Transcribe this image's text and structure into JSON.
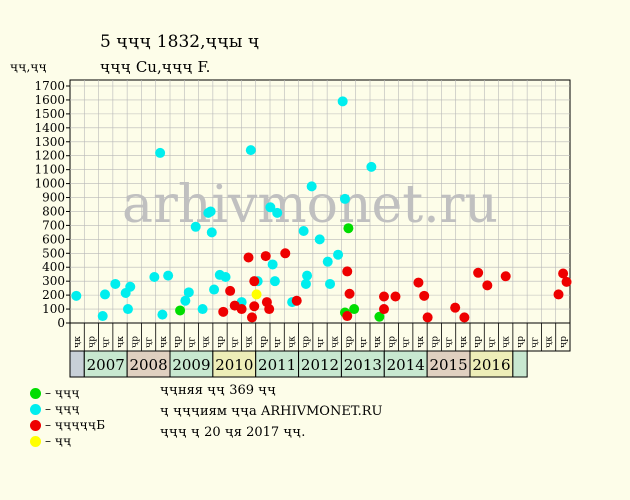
{
  "title": "5 ҷҷҷ 1832,ҷҷы ҷ",
  "subtitle": "ҷҷҷ Cu,ҷҷҷ F.",
  "ylabel": "ҷҷ,ҷҷ",
  "watermark": "arhivmonet.ru",
  "notes": [
    "ҷҷняя ҷҷ 369 ҷҷ",
    "ҷ ҷҷҷиям ҷҷа ARHIVMONET.RU",
    "ҷҷҷ ҷ 20 ҷя 2017 ҷҷ."
  ],
  "legend": [
    {
      "label": "– ҷҷҷ",
      "color": "#00dd00"
    },
    {
      "label": "– ҷҷҷ",
      "color": "#00eeee"
    },
    {
      "label": "– ҷҷҷҷҷБ",
      "color": "#ee0000"
    },
    {
      "label": "– ҷҷ",
      "color": "#ffff00"
    }
  ],
  "chart_data": {
    "type": "scatter",
    "ylim": [
      0,
      1700
    ],
    "yticks": [
      0,
      100,
      200,
      300,
      400,
      500,
      600,
      700,
      800,
      900,
      1000,
      1100,
      1200,
      1300,
      1400,
      1500,
      1600,
      1700
    ],
    "grid": true,
    "quarter_labels": [
      "ҷк",
      "ҷр",
      "ҷг",
      "ҷк",
      "ҷр",
      "ҷг",
      "ҷк",
      "ҷр",
      "ҷг",
      "ҷк",
      "ҷр",
      "ҷг",
      "ҷк",
      "ҷр",
      "ҷг",
      "ҷк",
      "ҷр",
      "ҷг",
      "ҷк",
      "ҷр",
      "ҷг",
      "ҷк",
      "ҷр",
      "ҷг",
      "ҷк",
      "ҷр",
      "ҷг",
      "ҷк",
      "ҷр",
      "ҷг",
      "ҷк",
      "ҷр",
      "ҷг",
      "ҷк",
      "ҷр",
      "ҷг",
      "ҷк",
      "ҷр",
      "ҷг",
      "ҷк",
      "ҷр",
      "ҷг",
      "ҷк",
      "ҷр",
      "ҷг",
      "ҷк",
      "ҷр",
      "ҷг",
      "ҷк",
      "ҷр",
      "ҷг",
      "ҷк",
      "ҷр",
      "ҷг",
      "ҷк",
      "ҷр",
      "ҷг",
      "ҷк",
      "ҷр",
      "ҷг",
      "ҷк",
      "ҷр",
      "ҷг"
    ],
    "years": [
      {
        "label": "",
        "color": "#c8d0d8",
        "quarters": 1
      },
      {
        "label": "2007",
        "color": "#c8e8d0",
        "quarters": 3
      },
      {
        "label": "2008",
        "color": "#e0d0c0",
        "quarters": 3
      },
      {
        "label": "2009",
        "color": "#c8e8d0",
        "quarters": 3
      },
      {
        "label": "2010",
        "color": "#eeeeb8",
        "quarters": 3
      },
      {
        "label": "2011",
        "color": "#c8e8d0",
        "quarters": 3
      },
      {
        "label": "2012",
        "color": "#c8e8d0",
        "quarters": 3
      },
      {
        "label": "2013",
        "color": "#c8e8d0",
        "quarters": 3
      },
      {
        "label": "2014",
        "color": "#c8e8d0",
        "quarters": 3
      },
      {
        "label": "2015",
        "color": "#e0d0c0",
        "quarters": 3
      },
      {
        "label": "2016",
        "color": "#eeeeb8",
        "quarters": 3
      },
      {
        "label": "",
        "color": "#c8e8d0",
        "quarters": 1
      }
    ],
    "series": [
      {
        "color": "#00dd00",
        "points": [
          [
            4.62,
            90
          ],
          [
            11.8,
            75
          ],
          [
            11.95,
            680
          ],
          [
            12.2,
            100
          ],
          [
            13.3,
            45
          ]
        ]
      },
      {
        "color": "#00eeee",
        "points": [
          [
            0.1,
            195
          ],
          [
            1.25,
            50
          ],
          [
            1.35,
            205
          ],
          [
            1.8,
            280
          ],
          [
            2.25,
            215
          ],
          [
            2.35,
            100
          ],
          [
            2.45,
            260
          ],
          [
            3.5,
            330
          ],
          [
            3.75,
            1220
          ],
          [
            3.85,
            60
          ],
          [
            4.1,
            340
          ],
          [
            4.85,
            160
          ],
          [
            5.0,
            220
          ],
          [
            5.3,
            690
          ],
          [
            5.6,
            100
          ],
          [
            5.85,
            790
          ],
          [
            5.95,
            800
          ],
          [
            6.0,
            650
          ],
          [
            6.1,
            240
          ],
          [
            6.35,
            345
          ],
          [
            6.6,
            330
          ],
          [
            7.3,
            150
          ],
          [
            7.7,
            1240
          ],
          [
            8.0,
            300
          ],
          [
            8.55,
            830
          ],
          [
            8.65,
            420
          ],
          [
            8.75,
            300
          ],
          [
            8.85,
            790
          ],
          [
            9.5,
            150
          ],
          [
            10.0,
            660
          ],
          [
            10.1,
            280
          ],
          [
            10.15,
            340
          ],
          [
            10.35,
            980
          ],
          [
            10.7,
            600
          ],
          [
            11.05,
            440
          ],
          [
            11.15,
            280
          ],
          [
            11.5,
            490
          ],
          [
            11.7,
            1590
          ],
          [
            11.8,
            890
          ],
          [
            12.95,
            1120
          ]
        ]
      },
      {
        "color": "#ee0000",
        "points": [
          [
            6.5,
            80
          ],
          [
            6.8,
            230
          ],
          [
            7.0,
            125
          ],
          [
            7.3,
            100
          ],
          [
            7.6,
            470
          ],
          [
            7.75,
            40
          ],
          [
            7.85,
            300
          ],
          [
            7.85,
            120
          ],
          [
            8.35,
            480
          ],
          [
            8.4,
            150
          ],
          [
            8.5,
            100
          ],
          [
            9.2,
            500
          ],
          [
            9.7,
            160
          ],
          [
            11.9,
            370
          ],
          [
            11.9,
            50
          ],
          [
            12.0,
            210
          ],
          [
            13.5,
            190
          ],
          [
            13.5,
            100
          ],
          [
            14.0,
            190
          ],
          [
            15.0,
            290
          ],
          [
            15.25,
            195
          ],
          [
            15.4,
            40
          ],
          [
            16.6,
            110
          ],
          [
            17.0,
            40
          ],
          [
            17.6,
            360
          ],
          [
            18.0,
            270
          ],
          [
            18.8,
            335
          ],
          [
            21.1,
            205
          ],
          [
            21.3,
            355
          ],
          [
            21.45,
            295
          ]
        ]
      },
      {
        "color": "#ffff00",
        "points": [
          [
            7.95,
            205
          ]
        ]
      }
    ]
  }
}
